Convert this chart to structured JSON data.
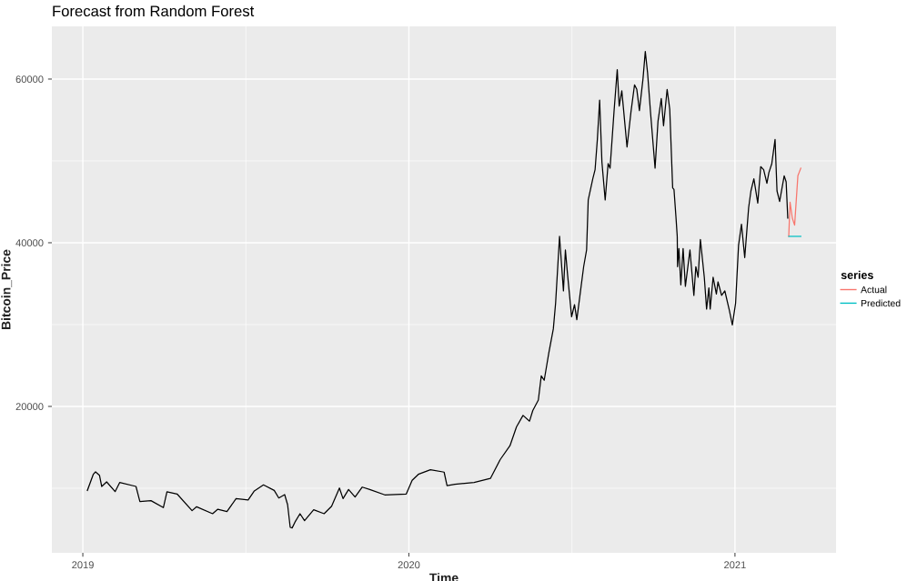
{
  "chart_data": {
    "type": "line",
    "title": "Forecast from Random Forest",
    "xlabel": "Time",
    "ylabel": "Bitcoin_Price",
    "legend_title": "series",
    "xlim": [
      2018.905,
      2021.31
    ],
    "ylim": [
      2110,
      66440
    ],
    "xticks": [
      2019,
      2020,
      2021
    ],
    "yticks": [
      20000,
      40000,
      60000
    ],
    "grid": true,
    "legend": "right",
    "series": [
      {
        "color": "#000000",
        "x": [
          2019.014,
          2019.032,
          2019.039,
          2019.051,
          2019.058,
          2019.073,
          2019.099,
          2019.113,
          2019.163,
          2019.175,
          2019.209,
          2019.247,
          2019.258,
          2019.289,
          2019.335,
          2019.349,
          2019.398,
          2019.414,
          2019.442,
          2019.47,
          2019.507,
          2019.526,
          2019.554,
          2019.587,
          2019.601,
          2019.619,
          2019.628,
          2019.636,
          2019.642,
          2019.652,
          2019.666,
          2019.68,
          2019.708,
          2019.74,
          2019.763,
          2019.787,
          2019.798,
          2019.815,
          2019.835,
          2019.857,
          2019.88,
          2019.926,
          2019.992,
          2020.01,
          2020.029,
          2020.066,
          2020.108,
          2020.117,
          2020.141,
          2020.2,
          2020.25,
          2020.28,
          2020.31,
          2020.33,
          2020.35,
          2020.37,
          2020.38,
          2020.397,
          2020.406,
          2020.415,
          2020.429,
          2020.443,
          2020.45,
          2020.462,
          2020.474,
          2020.48,
          2020.487,
          2020.499,
          2020.508,
          2020.515,
          2020.524,
          2020.536,
          2020.545,
          2020.55,
          2020.564,
          2020.571,
          2020.578,
          2020.585,
          2020.592,
          2020.602,
          2020.611,
          2020.617,
          2020.629,
          2020.639,
          2020.645,
          2020.653,
          2020.669,
          2020.681,
          2020.692,
          2020.699,
          2020.707,
          2020.718,
          2020.725,
          2020.732,
          2020.741,
          2020.755,
          2020.764,
          2020.774,
          2020.781,
          2020.792,
          2020.8,
          2020.809,
          2020.813,
          2020.819,
          2020.823,
          2020.824,
          2020.828,
          2020.834,
          2020.841,
          2020.848,
          2020.862,
          2020.874,
          2020.88,
          2020.887,
          2020.894,
          2020.906,
          2020.913,
          2020.92,
          2020.924,
          2020.933,
          2020.943,
          2020.948,
          2020.959,
          2020.969,
          2020.983,
          2020.992,
          2021.002,
          2021.011,
          2021.02,
          2021.03,
          2021.042,
          2021.049,
          2021.058,
          2021.07,
          2021.079,
          2021.088,
          2021.098,
          2021.104,
          2021.113,
          2021.123,
          2021.129,
          2021.137,
          2021.151,
          2021.157,
          2021.162
        ],
        "values": [
          9740,
          11700,
          12000,
          11590,
          10220,
          10780,
          9590,
          10700,
          10220,
          8370,
          8480,
          7630,
          9560,
          9300,
          7260,
          7740,
          6890,
          7440,
          7140,
          8740,
          8560,
          9670,
          10410,
          9740,
          8810,
          9220,
          8000,
          5220,
          5150,
          5960,
          6890,
          6040,
          7370,
          6890,
          7810,
          10030,
          8740,
          9850,
          8930,
          10140,
          9850,
          9190,
          9300,
          10970,
          11700,
          12260,
          11970,
          10330,
          10480,
          10700,
          11200,
          13500,
          15200,
          17500,
          18900,
          18200,
          19500,
          20780,
          23740,
          23190,
          26520,
          29480,
          32630,
          40780,
          34110,
          39110,
          35960,
          30960,
          32440,
          30590,
          33370,
          37080,
          39110,
          45220,
          47810,
          48920,
          52630,
          57440,
          49850,
          45220,
          49670,
          49110,
          55960,
          61150,
          56700,
          58560,
          51700,
          55960,
          59300,
          58740,
          56150,
          60040,
          63370,
          60780,
          55960,
          49110,
          54850,
          57630,
          54300,
          58740,
          56330,
          46700,
          46520,
          43190,
          40780,
          37080,
          39300,
          34850,
          39300,
          34670,
          39110,
          33560,
          37080,
          35780,
          40410,
          35780,
          31890,
          34480,
          31890,
          35780,
          33740,
          35220,
          33560,
          34110,
          31700,
          29960,
          32630,
          39670,
          42260,
          38190,
          44300,
          46330,
          47810,
          44850,
          49300,
          48920,
          47260,
          48560,
          49670,
          52630,
          46330,
          45030,
          48180,
          47440,
          43000
        ]
      },
      {
        "name": "Actual",
        "color": "#f8766d",
        "x": [
          2021.165,
          2021.169,
          2021.176,
          2021.183,
          2021.193,
          2021.202
        ],
        "values": [
          40780,
          44960,
          43000,
          42150,
          48180,
          49110
        ]
      },
      {
        "name": "Predicted",
        "color": "#00bfc4",
        "x": [
          2021.165,
          2021.202
        ],
        "values": [
          40780,
          40780
        ]
      }
    ]
  }
}
